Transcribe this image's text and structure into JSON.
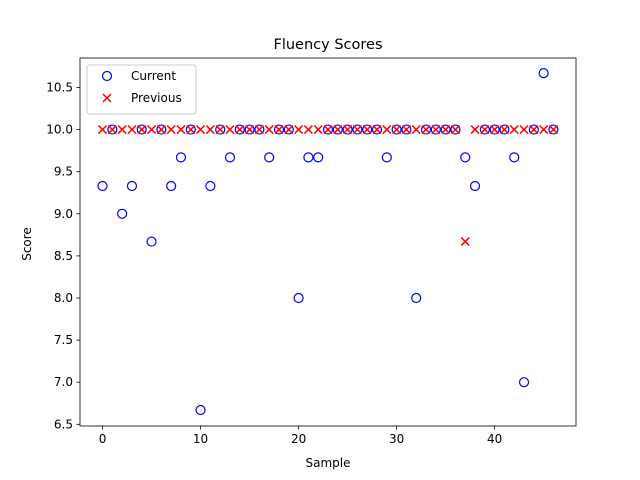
{
  "chart_data": {
    "type": "scatter",
    "title": "Fluency Scores",
    "xlabel": "Sample",
    "ylabel": "Score",
    "xlim": [
      -2.3,
      48.3
    ],
    "ylim": [
      6.48,
      10.85
    ],
    "xticks": [
      0,
      10,
      20,
      30,
      40
    ],
    "yticks": [
      6.5,
      7.0,
      7.5,
      8.0,
      8.5,
      9.0,
      9.5,
      10.0,
      10.5
    ],
    "ytick_labels": [
      "6.5",
      "7.0",
      "7.5",
      "8.0",
      "8.5",
      "9.0",
      "9.5",
      "10.0",
      "10.5"
    ],
    "legend_position": "upper-left",
    "series": [
      {
        "name": "Current",
        "marker": "open-circle",
        "color": "#0000ff",
        "x": [
          0,
          1,
          2,
          3,
          4,
          5,
          6,
          7,
          8,
          9,
          10,
          11,
          12,
          13,
          14,
          15,
          16,
          17,
          18,
          19,
          20,
          21,
          22,
          23,
          24,
          25,
          26,
          27,
          28,
          29,
          30,
          31,
          32,
          33,
          34,
          35,
          36,
          37,
          38,
          39,
          40,
          41,
          42,
          43,
          44,
          45,
          46
        ],
        "y": [
          9.33,
          10.0,
          9.0,
          9.33,
          10.0,
          8.67,
          10.0,
          9.33,
          9.67,
          10.0,
          6.67,
          9.33,
          10.0,
          9.67,
          10.0,
          10.0,
          10.0,
          9.67,
          10.0,
          10.0,
          8.0,
          9.67,
          9.67,
          10.0,
          10.0,
          10.0,
          10.0,
          10.0,
          10.0,
          9.67,
          10.0,
          10.0,
          8.0,
          10.0,
          10.0,
          10.0,
          10.0,
          9.67,
          9.33,
          10.0,
          10.0,
          10.0,
          9.67,
          7.0,
          10.0,
          10.67,
          10.0
        ]
      },
      {
        "name": "Previous",
        "marker": "x",
        "color": "#ff0000",
        "x": [
          0,
          1,
          2,
          3,
          4,
          5,
          6,
          7,
          8,
          9,
          10,
          11,
          12,
          13,
          14,
          15,
          16,
          17,
          18,
          19,
          20,
          21,
          22,
          23,
          24,
          25,
          26,
          27,
          28,
          29,
          30,
          31,
          32,
          33,
          34,
          35,
          36,
          37,
          38,
          39,
          40,
          41,
          42,
          43,
          44,
          45,
          46
        ],
        "y": [
          10.0,
          10.0,
          10.0,
          10.0,
          10.0,
          10.0,
          10.0,
          10.0,
          10.0,
          10.0,
          10.0,
          10.0,
          10.0,
          10.0,
          10.0,
          10.0,
          10.0,
          10.0,
          10.0,
          10.0,
          10.0,
          10.0,
          10.0,
          10.0,
          10.0,
          10.0,
          10.0,
          10.0,
          10.0,
          10.0,
          10.0,
          10.0,
          10.0,
          10.0,
          10.0,
          10.0,
          10.0,
          8.67,
          10.0,
          10.0,
          10.0,
          10.0,
          10.0,
          10.0,
          10.0,
          10.0,
          10.0
        ]
      }
    ]
  }
}
